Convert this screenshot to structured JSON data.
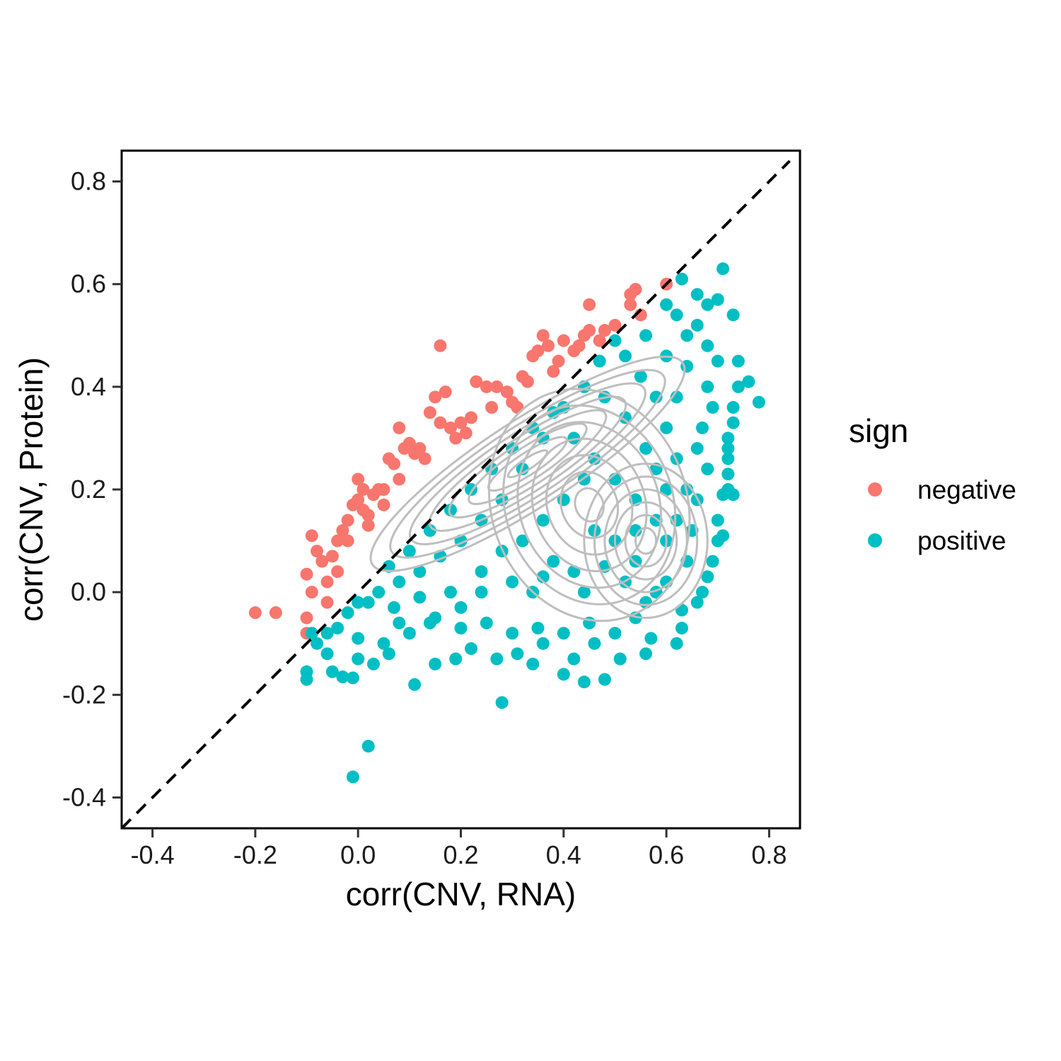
{
  "chart_data": {
    "type": "scatter",
    "xlabel": "corr(CNV, RNA)",
    "ylabel": "corr(CNV, Protein)",
    "xlim": [
      -0.46,
      0.86
    ],
    "ylim": [
      -0.46,
      0.86
    ],
    "x_ticks": [
      "-0.4",
      "-0.2",
      "0.0",
      "0.2",
      "0.4",
      "0.6",
      "0.8"
    ],
    "y_ticks": [
      "-0.4",
      "-0.2",
      "0.0",
      "0.2",
      "0.4",
      "0.6",
      "0.8"
    ],
    "reference_line": {
      "style": "dashed",
      "slope": 1,
      "intercept": 0,
      "color": "#000000"
    },
    "grid": false,
    "legend": {
      "title": "sign",
      "position": "right"
    },
    "series": [
      {
        "name": "negative",
        "color": "#F8766D",
        "points": [
          [
            -0.2,
            -0.04
          ],
          [
            -0.16,
            -0.04
          ],
          [
            -0.1,
            -0.05
          ],
          [
            -0.1,
            -0.08
          ],
          [
            -0.1,
            0.035
          ],
          [
            -0.09,
            0.0
          ],
          [
            -0.09,
            0.11
          ],
          [
            -0.08,
            0.08
          ],
          [
            -0.07,
            0.06
          ],
          [
            -0.06,
            -0.02
          ],
          [
            -0.05,
            0.07
          ],
          [
            -0.04,
            0.1
          ],
          [
            -0.03,
            0.12
          ],
          [
            -0.02,
            0.14
          ],
          [
            -0.02,
            0.1
          ],
          [
            -0.01,
            0.17
          ],
          [
            0.0,
            0.22
          ],
          [
            0.0,
            0.18
          ],
          [
            0.01,
            0.16
          ],
          [
            0.01,
            0.2
          ],
          [
            0.02,
            0.13
          ],
          [
            0.03,
            0.19
          ],
          [
            0.04,
            0.2
          ],
          [
            0.05,
            0.2
          ],
          [
            0.06,
            0.26
          ],
          [
            0.07,
            0.25
          ],
          [
            0.08,
            0.32
          ],
          [
            0.09,
            0.28
          ],
          [
            0.1,
            0.29
          ],
          [
            0.11,
            0.27
          ],
          [
            0.12,
            0.28
          ],
          [
            0.14,
            0.35
          ],
          [
            0.15,
            0.38
          ],
          [
            0.16,
            0.48
          ],
          [
            0.16,
            0.33
          ],
          [
            0.17,
            0.39
          ],
          [
            0.18,
            0.32
          ],
          [
            0.2,
            0.33
          ],
          [
            0.21,
            0.31
          ],
          [
            0.23,
            0.41
          ],
          [
            0.25,
            0.4
          ],
          [
            0.27,
            0.4
          ],
          [
            0.29,
            0.39
          ],
          [
            0.3,
            0.37
          ],
          [
            0.31,
            0.36
          ],
          [
            0.33,
            0.41
          ],
          [
            0.34,
            0.46
          ],
          [
            0.35,
            0.47
          ],
          [
            0.36,
            0.5
          ],
          [
            0.37,
            0.48
          ],
          [
            0.38,
            0.43
          ],
          [
            0.4,
            0.49
          ],
          [
            0.42,
            0.47
          ],
          [
            0.44,
            0.5
          ],
          [
            0.45,
            0.51
          ],
          [
            0.45,
            0.56
          ],
          [
            0.47,
            0.49
          ],
          [
            0.48,
            0.51
          ],
          [
            0.5,
            0.52
          ],
          [
            0.53,
            0.56
          ],
          [
            0.53,
            0.58
          ],
          [
            0.54,
            0.59
          ],
          [
            0.6,
            0.6
          ],
          [
            -0.04,
            0.04
          ],
          [
            -0.06,
            0.02
          ],
          [
            0.02,
            0.15
          ],
          [
            0.05,
            0.17
          ],
          [
            0.08,
            0.22
          ],
          [
            0.13,
            0.26
          ],
          [
            0.19,
            0.3
          ],
          [
            0.22,
            0.34
          ],
          [
            0.26,
            0.36
          ],
          [
            0.32,
            0.42
          ],
          [
            0.39,
            0.45
          ],
          [
            0.43,
            0.48
          ],
          [
            0.55,
            0.54
          ]
        ]
      },
      {
        "name": "positive",
        "color": "#00BFC4",
        "points": [
          [
            -0.1,
            -0.155
          ],
          [
            -0.1,
            -0.17
          ],
          [
            -0.09,
            -0.08
          ],
          [
            -0.08,
            -0.1
          ],
          [
            -0.06,
            -0.12
          ],
          [
            -0.05,
            -0.155
          ],
          [
            -0.03,
            -0.165
          ],
          [
            -0.01,
            -0.167
          ],
          [
            -0.01,
            -0.36
          ],
          [
            0.02,
            -0.3
          ],
          [
            0.0,
            -0.13
          ],
          [
            0.03,
            -0.14
          ],
          [
            0.06,
            -0.12
          ],
          [
            0.11,
            -0.18
          ],
          [
            0.15,
            -0.14
          ],
          [
            0.19,
            -0.13
          ],
          [
            0.22,
            -0.11
          ],
          [
            0.27,
            -0.13
          ],
          [
            0.28,
            -0.215
          ],
          [
            0.31,
            -0.12
          ],
          [
            0.34,
            -0.14
          ],
          [
            0.36,
            -0.1
          ],
          [
            0.4,
            -0.16
          ],
          [
            0.42,
            -0.13
          ],
          [
            0.44,
            -0.175
          ],
          [
            0.46,
            -0.1
          ],
          [
            0.48,
            -0.17
          ],
          [
            0.51,
            -0.13
          ],
          [
            0.56,
            -0.12
          ],
          [
            0.57,
            -0.09
          ],
          [
            0.62,
            -0.1
          ],
          [
            0.63,
            -0.07
          ],
          [
            0.63,
            -0.035
          ],
          [
            0.66,
            -0.02
          ],
          [
            0.67,
            0.0
          ],
          [
            0.68,
            0.03
          ],
          [
            0.69,
            0.06
          ],
          [
            0.7,
            0.1
          ],
          [
            0.71,
            0.11
          ],
          [
            0.7,
            0.14
          ],
          [
            0.71,
            0.19
          ],
          [
            0.72,
            0.2
          ],
          [
            0.73,
            0.19
          ],
          [
            0.72,
            0.23
          ],
          [
            0.72,
            0.26
          ],
          [
            0.72,
            0.28
          ],
          [
            0.72,
            0.3
          ],
          [
            0.73,
            0.33
          ],
          [
            0.73,
            0.36
          ],
          [
            0.74,
            0.4
          ],
          [
            0.76,
            0.41
          ],
          [
            0.74,
            0.45
          ],
          [
            0.78,
            0.37
          ],
          [
            0.73,
            0.54
          ],
          [
            0.7,
            0.57
          ],
          [
            0.71,
            0.63
          ],
          [
            0.63,
            0.61
          ],
          [
            0.66,
            0.58
          ],
          [
            0.68,
            0.56
          ],
          [
            0.6,
            0.56
          ],
          [
            0.62,
            0.54
          ],
          [
            0.64,
            0.5
          ],
          [
            0.68,
            0.48
          ],
          [
            0.7,
            0.45
          ],
          [
            0.68,
            0.4
          ],
          [
            0.69,
            0.36
          ],
          [
            0.67,
            0.32
          ],
          [
            0.66,
            0.28
          ],
          [
            0.68,
            0.24
          ],
          [
            0.66,
            0.18
          ],
          [
            0.65,
            0.12
          ],
          [
            0.64,
            0.06
          ],
          [
            0.6,
            0.02
          ],
          [
            0.58,
            0.0
          ],
          [
            0.54,
            -0.05
          ],
          [
            0.5,
            -0.08
          ],
          [
            0.45,
            -0.06
          ],
          [
            0.4,
            -0.08
          ],
          [
            0.35,
            -0.07
          ],
          [
            0.3,
            -0.08
          ],
          [
            0.25,
            -0.06
          ],
          [
            0.2,
            -0.07
          ],
          [
            0.15,
            -0.05
          ],
          [
            0.1,
            -0.08
          ],
          [
            0.05,
            -0.1
          ],
          [
            0.0,
            -0.09
          ],
          [
            -0.04,
            -0.07
          ],
          [
            -0.02,
            -0.04
          ],
          [
            0.02,
            -0.02
          ],
          [
            0.07,
            -0.03
          ],
          [
            0.12,
            -0.01
          ],
          [
            0.18,
            0.0
          ],
          [
            0.24,
            0.0
          ],
          [
            0.3,
            0.02
          ],
          [
            0.36,
            0.03
          ],
          [
            0.42,
            0.04
          ],
          [
            0.48,
            0.05
          ],
          [
            0.54,
            0.06
          ],
          [
            0.6,
            0.1
          ],
          [
            0.62,
            0.14
          ],
          [
            0.64,
            0.2
          ],
          [
            0.62,
            0.26
          ],
          [
            0.6,
            0.32
          ],
          [
            0.58,
            0.38
          ],
          [
            0.55,
            0.42
          ],
          [
            0.52,
            0.46
          ],
          [
            0.5,
            0.49
          ],
          [
            0.47,
            0.45
          ],
          [
            0.44,
            0.4
          ],
          [
            0.4,
            0.36
          ],
          [
            0.36,
            0.3
          ],
          [
            0.32,
            0.24
          ],
          [
            0.28,
            0.18
          ],
          [
            0.24,
            0.14
          ],
          [
            0.2,
            0.1
          ],
          [
            0.16,
            0.07
          ],
          [
            0.12,
            0.04
          ],
          [
            0.08,
            0.02
          ],
          [
            0.04,
            0.0
          ],
          [
            0.0,
            -0.02
          ],
          [
            0.06,
            0.05
          ],
          [
            0.1,
            0.08
          ],
          [
            0.14,
            0.12
          ],
          [
            0.18,
            0.16
          ],
          [
            0.22,
            0.2
          ],
          [
            0.26,
            0.24
          ],
          [
            0.3,
            0.28
          ],
          [
            0.34,
            0.32
          ],
          [
            0.38,
            0.35
          ],
          [
            0.42,
            0.3
          ],
          [
            0.46,
            0.26
          ],
          [
            0.5,
            0.22
          ],
          [
            0.54,
            0.18
          ],
          [
            0.58,
            0.14
          ],
          [
            0.6,
            0.2
          ],
          [
            0.56,
            0.28
          ],
          [
            0.52,
            0.34
          ],
          [
            0.48,
            0.38
          ],
          [
            0.44,
            0.22
          ],
          [
            0.4,
            0.18
          ],
          [
            0.36,
            0.14
          ],
          [
            0.32,
            0.1
          ],
          [
            0.28,
            0.08
          ],
          [
            0.24,
            0.04
          ],
          [
            0.46,
            0.12
          ],
          [
            0.5,
            0.1
          ],
          [
            0.54,
            0.12
          ],
          [
            0.58,
            0.24
          ],
          [
            0.62,
            0.38
          ],
          [
            0.64,
            0.44
          ],
          [
            0.66,
            0.52
          ],
          [
            0.56,
            0.5
          ],
          [
            0.6,
            0.46
          ],
          [
            0.38,
            0.06
          ],
          [
            0.34,
            0.0
          ],
          [
            0.44,
            0.0
          ],
          [
            0.52,
            0.02
          ],
          [
            0.56,
            -0.02
          ],
          [
            0.2,
            -0.03
          ],
          [
            0.14,
            -0.06
          ],
          [
            0.08,
            -0.06
          ],
          [
            -0.06,
            -0.08
          ]
        ]
      }
    ],
    "density_contours": {
      "color": "#BEBEBE",
      "levels": 8
    }
  }
}
